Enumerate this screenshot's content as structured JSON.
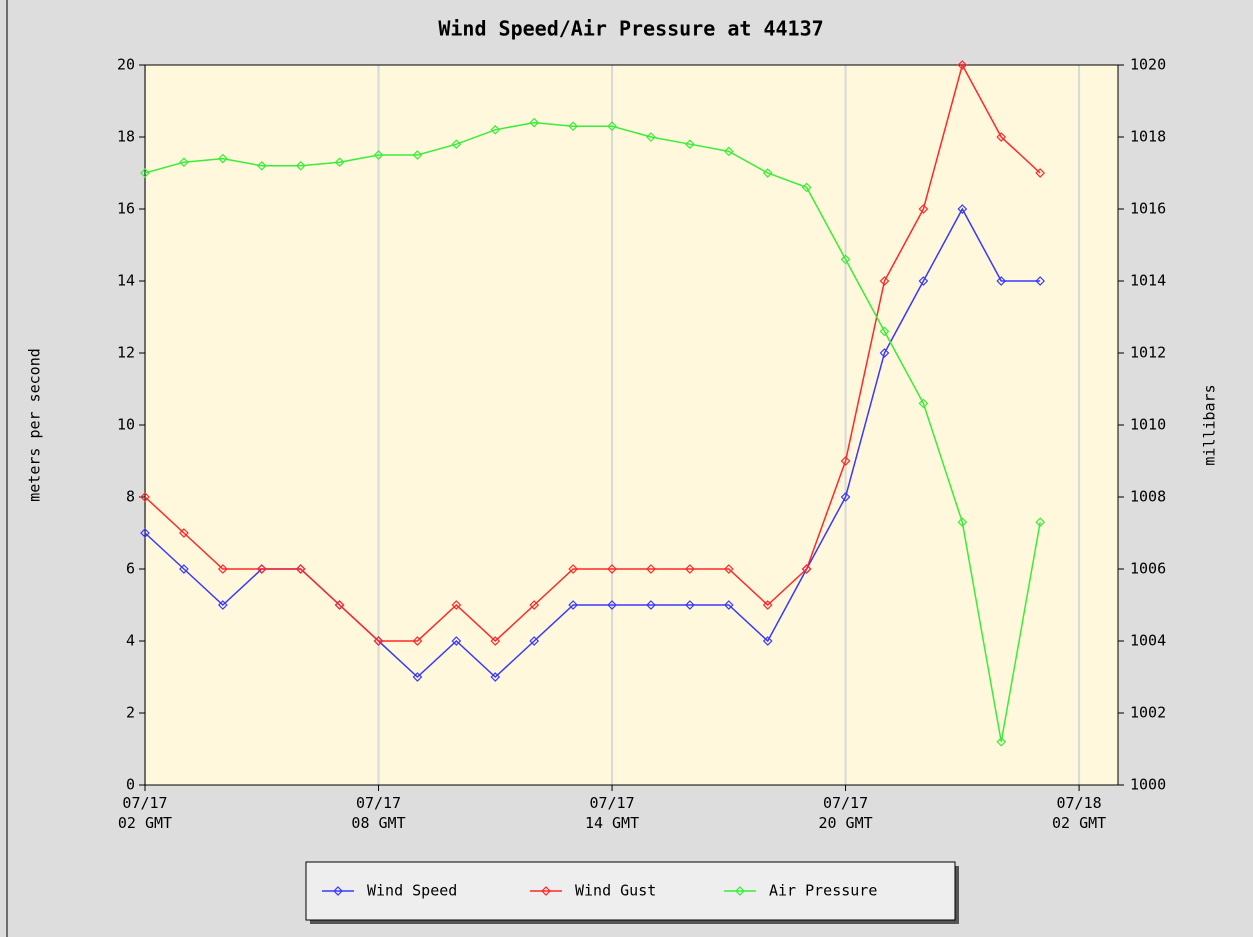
{
  "chart_data": {
    "type": "line",
    "title": "Wind Speed/Air Pressure at 44137",
    "y_label": "meters per second",
    "y2_label": "millibars",
    "x": [
      "07/17 02:00",
      "07/17 03:00",
      "07/17 04:00",
      "07/17 05:00",
      "07/17 06:00",
      "07/17 07:00",
      "07/17 08:00",
      "07/17 09:00",
      "07/17 10:00",
      "07/17 11:00",
      "07/17 12:00",
      "07/17 13:00",
      "07/17 14:00",
      "07/17 15:00",
      "07/17 16:00",
      "07/17 17:00",
      "07/17 18:00",
      "07/17 19:00",
      "07/17 20:00",
      "07/17 21:00",
      "07/17 22:00",
      "07/17 23:00",
      "07/18 00:00",
      "07/18 01:00"
    ],
    "series": [
      {
        "name": "Wind Speed",
        "color": "#3838ff",
        "values": [
          7,
          6,
          5,
          6,
          6,
          5,
          4,
          3,
          4,
          3,
          4,
          5,
          5,
          5,
          5,
          5,
          4,
          6,
          8,
          12,
          14,
          16,
          14,
          14
        ]
      },
      {
        "name": "Wind Gust",
        "color": "#ff2828",
        "values": [
          8,
          7,
          6,
          6,
          6,
          5,
          4,
          4,
          5,
          4,
          5,
          6,
          6,
          6,
          6,
          6,
          5,
          6,
          9,
          14,
          16,
          20,
          18,
          17
        ]
      },
      {
        "name": "Air Pressure",
        "color": "#38ee38",
        "axis": "y2",
        "values": [
          1017.0,
          1017.3,
          1017.4,
          1017.2,
          1017.2,
          1017.3,
          1017.5,
          1017.5,
          1017.8,
          1018.2,
          1018.4,
          1018.3,
          1018.3,
          1018.0,
          1017.8,
          1017.6,
          1017.0,
          1016.6,
          1014.6,
          1012.6,
          1010.6,
          1007.3,
          1001.2,
          1007.3
        ]
      }
    ],
    "xlim": [
      "07/17 02:00",
      "07/18 03:00"
    ],
    "xticks": [
      {
        "value": "07/17 02:00",
        "label": [
          "07/17",
          "02 GMT"
        ]
      },
      {
        "value": "07/17 08:00",
        "label": [
          "07/17",
          "08 GMT"
        ]
      },
      {
        "value": "07/17 14:00",
        "label": [
          "07/17",
          "14 GMT"
        ]
      },
      {
        "value": "07/17 20:00",
        "label": [
          "07/17",
          "20 GMT"
        ]
      },
      {
        "value": "07/18 02:00",
        "label": [
          "07/18",
          "02 GMT"
        ]
      }
    ],
    "ylim": [
      0,
      20
    ],
    "yticks": [
      0,
      2,
      4,
      6,
      8,
      10,
      12,
      14,
      16,
      18,
      20
    ],
    "y2lim": [
      1000,
      1020
    ],
    "y2ticks": [
      1000,
      1002,
      1004,
      1006,
      1008,
      1010,
      1012,
      1014,
      1016,
      1018,
      1020
    ],
    "grid": "x",
    "legend": "bottom"
  }
}
